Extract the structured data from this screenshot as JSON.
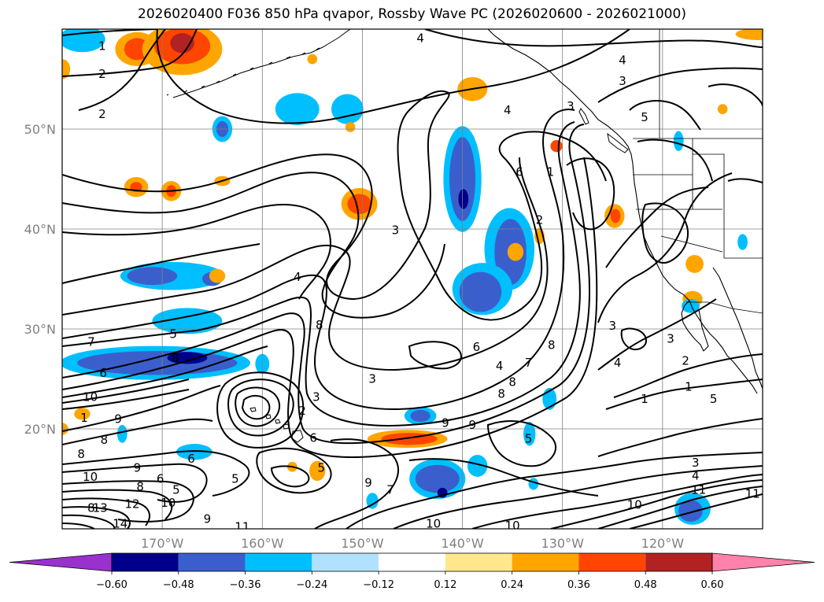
{
  "chart_data": {
    "type": "contour_map",
    "title": "2026020400 F036 850 hPa qvapor, Rossby Wave PC (2026020600 - 2026021000)",
    "map": {
      "lon_range": [
        -180,
        -110
      ],
      "lat_range": [
        10,
        60
      ],
      "lat_ticks": [
        {
          "value": 50,
          "label": "50°N"
        },
        {
          "value": 40,
          "label": "40°N"
        },
        {
          "value": 30,
          "label": "30°N"
        },
        {
          "value": 20,
          "label": "20°N"
        }
      ],
      "lon_ticks": [
        {
          "value": -170,
          "label": "170°W"
        },
        {
          "value": -160,
          "label": "160°W"
        },
        {
          "value": -150,
          "label": "150°W"
        },
        {
          "value": -140,
          "label": "140°W"
        },
        {
          "value": -130,
          "label": "130°W"
        },
        {
          "value": -120,
          "label": "120°W"
        }
      ],
      "grid": true
    },
    "contour_field": "850 hPa qvapor",
    "contour_labels": [
      {
        "value": "1",
        "lon": -176,
        "lat": 58.3
      },
      {
        "value": "2",
        "lon": -176,
        "lat": 55.5
      },
      {
        "value": "2",
        "lon": -176,
        "lat": 51.5
      },
      {
        "value": "4",
        "lon": -144.2,
        "lat": 59.1
      },
      {
        "value": "4",
        "lon": -124,
        "lat": 56.9
      },
      {
        "value": "3",
        "lon": -124,
        "lat": 54.8
      },
      {
        "value": "4",
        "lon": -135.5,
        "lat": 51.9
      },
      {
        "value": "3",
        "lon": -129.2,
        "lat": 52.3
      },
      {
        "value": "5",
        "lon": -121.8,
        "lat": 51.2
      },
      {
        "value": "6",
        "lon": -134.3,
        "lat": 45.7
      },
      {
        "value": "1",
        "lon": -131.2,
        "lat": 45.7
      },
      {
        "value": "3",
        "lon": -146.7,
        "lat": 39.9
      },
      {
        "value": "2",
        "lon": -132.3,
        "lat": 40.9
      },
      {
        "value": "4",
        "lon": -156.5,
        "lat": 35.2
      },
      {
        "value": "8",
        "lon": -154.3,
        "lat": 30.4
      },
      {
        "value": "5",
        "lon": -168.9,
        "lat": 29.5
      },
      {
        "value": "7",
        "lon": -177.1,
        "lat": 28.7
      },
      {
        "value": "8",
        "lon": -168.7,
        "lat": 27.1
      },
      {
        "value": "6",
        "lon": -175.9,
        "lat": 25.6
      },
      {
        "value": "10",
        "lon": -177.2,
        "lat": 23.2
      },
      {
        "value": "1",
        "lon": -177.8,
        "lat": 21.1
      },
      {
        "value": "9",
        "lon": -174.4,
        "lat": 21.0
      },
      {
        "value": "3",
        "lon": -154.6,
        "lat": 23.2
      },
      {
        "value": "2",
        "lon": -156.0,
        "lat": 21.8
      },
      {
        "value": "6",
        "lon": -154.9,
        "lat": 19.1
      },
      {
        "value": "6",
        "lon": -138.6,
        "lat": 28.2
      },
      {
        "value": "8",
        "lon": -131.1,
        "lat": 28.4
      },
      {
        "value": "3",
        "lon": -149.0,
        "lat": 25.0
      },
      {
        "value": "4",
        "lon": -136.3,
        "lat": 26.3
      },
      {
        "value": "7",
        "lon": -133.4,
        "lat": 26.6
      },
      {
        "value": "8",
        "lon": -135.0,
        "lat": 24.7
      },
      {
        "value": "8",
        "lon": -136.1,
        "lat": 23.5
      },
      {
        "value": "9",
        "lon": -141.7,
        "lat": 20.6
      },
      {
        "value": "9",
        "lon": -139.0,
        "lat": 20.4
      },
      {
        "value": "3",
        "lon": -125.0,
        "lat": 30.3
      },
      {
        "value": "3",
        "lon": -119.2,
        "lat": 29.0
      },
      {
        "value": "4",
        "lon": -124.5,
        "lat": 26.6
      },
      {
        "value": "2",
        "lon": -117.7,
        "lat": 26.8
      },
      {
        "value": "1",
        "lon": -121.8,
        "lat": 23.0
      },
      {
        "value": "1",
        "lon": -117.4,
        "lat": 24.2
      },
      {
        "value": "5",
        "lon": -114.9,
        "lat": 23.0
      },
      {
        "value": "5",
        "lon": -133.4,
        "lat": 19.0
      },
      {
        "value": "3",
        "lon": -116.7,
        "lat": 16.6
      },
      {
        "value": "4",
        "lon": -116.7,
        "lat": 15.3
      },
      {
        "value": "11",
        "lon": -116.4,
        "lat": 13.9
      },
      {
        "value": "11",
        "lon": -111.0,
        "lat": 13.5
      },
      {
        "value": "10",
        "lon": -122.8,
        "lat": 12.4
      },
      {
        "value": "10",
        "lon": -142.9,
        "lat": 10.5
      },
      {
        "value": "10",
        "lon": -135.0,
        "lat": 10.3
      },
      {
        "value": "11",
        "lon": -162.0,
        "lat": 10.2
      },
      {
        "value": "8",
        "lon": -178.1,
        "lat": 17.5
      },
      {
        "value": "8",
        "lon": -175.8,
        "lat": 18.9
      },
      {
        "value": "10",
        "lon": -177.2,
        "lat": 15.2
      },
      {
        "value": "9",
        "lon": -172.5,
        "lat": 16.1
      },
      {
        "value": "8",
        "lon": -172.2,
        "lat": 14.2
      },
      {
        "value": "6",
        "lon": -167.1,
        "lat": 17.0
      },
      {
        "value": "6",
        "lon": -170.2,
        "lat": 15.0
      },
      {
        "value": "5",
        "lon": -168.6,
        "lat": 13.9
      },
      {
        "value": "5",
        "lon": -162.7,
        "lat": 15.0
      },
      {
        "value": "12",
        "lon": -173.0,
        "lat": 12.5
      },
      {
        "value": "10",
        "lon": -169.4,
        "lat": 12.6
      },
      {
        "value": "13",
        "lon": -176.2,
        "lat": 12.1
      },
      {
        "value": "14",
        "lon": -174.2,
        "lat": 10.5
      },
      {
        "value": "8",
        "lon": -177.1,
        "lat": 12.1
      },
      {
        "value": "9",
        "lon": -165.5,
        "lat": 11.0
      },
      {
        "value": "9",
        "lon": -149.4,
        "lat": 14.6
      },
      {
        "value": "5",
        "lon": -154.1,
        "lat": 16.1
      },
      {
        "value": "7",
        "lon": -147.2,
        "lat": 13.9
      }
    ],
    "shading_field": "Rossby Wave PC (2026020600 - 2026021000)",
    "colorbar": {
      "levels": [
        -0.6,
        -0.48,
        -0.36,
        -0.24,
        -0.12,
        0.12,
        0.24,
        0.36,
        0.48,
        0.6
      ],
      "tick_labels": [
        "−0.60",
        "−0.48",
        "−0.36",
        "−0.24",
        "−0.12",
        "0.12",
        "0.24",
        "0.36",
        "0.48",
        "0.60"
      ],
      "colors": [
        "#9932CC",
        "#00008B",
        "#3A5FCD",
        "#00BFFF",
        "#B0E2FF",
        "#FFFFFF",
        "#FFE88C",
        "#FFA500",
        "#FF4500",
        "#B22222",
        "#FF82AB"
      ],
      "extend": "both"
    },
    "shaded_regions": [
      {
        "level": 0.24,
        "lon": -172.5,
        "lat": 58.0,
        "rx": 2.2,
        "ry": 1.7
      },
      {
        "level": 0.36,
        "lon": -172.5,
        "lat": 58.0,
        "rx": 1.3,
        "ry": 1.1
      },
      {
        "level": 0.24,
        "lon": -168.0,
        "lat": 58.0,
        "rx": 4.0,
        "ry": 2.6
      },
      {
        "level": 0.36,
        "lon": -168.0,
        "lat": 58.3,
        "rx": 2.8,
        "ry": 1.8
      },
      {
        "level": 0.48,
        "lon": -168.0,
        "lat": 58.6,
        "rx": 1.2,
        "ry": 1.0
      },
      {
        "level": 0.24,
        "lon": -180.0,
        "lat": 56.0,
        "rx": 0.8,
        "ry": 1.0
      },
      {
        "level": -0.24,
        "lon": -178.0,
        "lat": 59.0,
        "rx": 2.3,
        "ry": 1.3
      },
      {
        "level": -0.24,
        "lon": -151.5,
        "lat": 52.0,
        "rx": 1.6,
        "ry": 1.5
      },
      {
        "level": -0.24,
        "lon": -156.5,
        "lat": 52.0,
        "rx": 2.2,
        "ry": 1.6
      },
      {
        "level": -0.24,
        "lon": -164.0,
        "lat": 50.0,
        "rx": 1.0,
        "ry": 1.3
      },
      {
        "level": -0.36,
        "lon": -164.0,
        "lat": 50.0,
        "rx": 0.6,
        "ry": 0.8
      },
      {
        "level": 0.24,
        "lon": -139.0,
        "lat": 54.0,
        "rx": 1.5,
        "ry": 1.2
      },
      {
        "level": 0.24,
        "lon": -151.2,
        "lat": 50.2,
        "rx": 0.5,
        "ry": 0.5
      },
      {
        "level": -0.24,
        "lon": -140.0,
        "lat": 45.0,
        "rx": 1.9,
        "ry": 5.3
      },
      {
        "level": -0.36,
        "lon": -140.0,
        "lat": 45.0,
        "rx": 1.3,
        "ry": 4.2
      },
      {
        "level": -0.48,
        "lon": -139.9,
        "lat": 43.0,
        "rx": 0.5,
        "ry": 1.0
      },
      {
        "level": -0.24,
        "lon": -135.3,
        "lat": 38.0,
        "rx": 2.5,
        "ry": 4.1
      },
      {
        "level": -0.36,
        "lon": -135.2,
        "lat": 37.7,
        "rx": 1.6,
        "ry": 3.3
      },
      {
        "level": -0.24,
        "lon": -138.0,
        "lat": 34.0,
        "rx": 3.0,
        "ry": 2.6
      },
      {
        "level": -0.36,
        "lon": -138.2,
        "lat": 33.7,
        "rx": 2.1,
        "ry": 2.0
      },
      {
        "level": 0.24,
        "lon": -150.3,
        "lat": 42.5,
        "rx": 1.8,
        "ry": 1.6
      },
      {
        "level": 0.36,
        "lon": -150.3,
        "lat": 42.5,
        "rx": 1.2,
        "ry": 1.0
      },
      {
        "level": 0.24,
        "lon": -172.6,
        "lat": 44.2,
        "rx": 1.2,
        "ry": 1.0
      },
      {
        "level": 0.36,
        "lon": -172.6,
        "lat": 44.2,
        "rx": 0.6,
        "ry": 0.5
      },
      {
        "level": 0.24,
        "lon": -169.1,
        "lat": 43.8,
        "rx": 1.0,
        "ry": 1.0
      },
      {
        "level": 0.36,
        "lon": -169.1,
        "lat": 43.8,
        "rx": 0.5,
        "ry": 0.6
      },
      {
        "level": 0.24,
        "lon": -164.0,
        "lat": 44.8,
        "rx": 0.8,
        "ry": 0.5
      },
      {
        "level": -0.24,
        "lon": -169.0,
        "lat": 35.3,
        "rx": 5.2,
        "ry": 1.4
      },
      {
        "level": -0.36,
        "lon": -171.0,
        "lat": 35.3,
        "rx": 2.5,
        "ry": 0.9
      },
      {
        "level": -0.36,
        "lon": -165.0,
        "lat": 35.0,
        "rx": 1.0,
        "ry": 0.7
      },
      {
        "level": 0.24,
        "lon": -164.5,
        "lat": 35.3,
        "rx": 0.8,
        "ry": 0.7
      },
      {
        "level": -0.24,
        "lon": -167.5,
        "lat": 30.8,
        "rx": 3.5,
        "ry": 1.3
      },
      {
        "level": -0.24,
        "lon": -170.7,
        "lat": 26.6,
        "rx": 9.5,
        "ry": 1.7
      },
      {
        "level": -0.36,
        "lon": -170.5,
        "lat": 26.6,
        "rx": 8.0,
        "ry": 1.2
      },
      {
        "level": -0.48,
        "lon": -167.5,
        "lat": 27.1,
        "rx": 2.0,
        "ry": 0.6
      },
      {
        "level": -0.24,
        "lon": -160.0,
        "lat": 26.5,
        "rx": 0.7,
        "ry": 1.0
      },
      {
        "level": -0.24,
        "lon": -174.0,
        "lat": 19.5,
        "rx": 0.5,
        "ry": 0.9
      },
      {
        "level": 0.24,
        "lon": -180.0,
        "lat": 20.0,
        "rx": 0.6,
        "ry": 0.6
      },
      {
        "level": 0.24,
        "lon": -178.0,
        "lat": 21.5,
        "rx": 0.8,
        "ry": 0.6
      },
      {
        "level": -0.24,
        "lon": -144.2,
        "lat": 21.3,
        "rx": 1.6,
        "ry": 0.9
      },
      {
        "level": -0.36,
        "lon": -144.2,
        "lat": 21.3,
        "rx": 1.0,
        "ry": 0.6
      },
      {
        "level": 0.24,
        "lon": -145.5,
        "lat": 19.0,
        "rx": 4.0,
        "ry": 0.9
      },
      {
        "level": 0.36,
        "lon": -145.3,
        "lat": 19.0,
        "rx": 2.8,
        "ry": 0.6
      },
      {
        "level": -0.24,
        "lon": -149.0,
        "lat": 12.8,
        "rx": 0.6,
        "ry": 0.8
      },
      {
        "level": -0.24,
        "lon": -142.5,
        "lat": 15.0,
        "rx": 2.8,
        "ry": 2.0
      },
      {
        "level": -0.36,
        "lon": -142.5,
        "lat": 15.0,
        "rx": 2.2,
        "ry": 1.4
      },
      {
        "level": -0.48,
        "lon": -142.0,
        "lat": 13.6,
        "rx": 0.5,
        "ry": 0.5
      },
      {
        "level": -0.24,
        "lon": -138.5,
        "lat": 16.3,
        "rx": 1.0,
        "ry": 1.1
      },
      {
        "level": 0.24,
        "lon": -157.0,
        "lat": 16.2,
        "rx": 0.5,
        "ry": 0.5
      },
      {
        "level": 0.24,
        "lon": -154.5,
        "lat": 15.8,
        "rx": 0.8,
        "ry": 1.0
      },
      {
        "level": -0.24,
        "lon": -166.8,
        "lat": 17.7,
        "rx": 1.8,
        "ry": 0.8
      },
      {
        "level": -0.24,
        "lon": -133.3,
        "lat": 19.5,
        "rx": 0.6,
        "ry": 1.2
      },
      {
        "level": -0.24,
        "lon": -131.3,
        "lat": 23.0,
        "rx": 0.7,
        "ry": 1.1
      },
      {
        "level": -0.24,
        "lon": -132.9,
        "lat": 14.5,
        "rx": 0.5,
        "ry": 0.6
      },
      {
        "level": -0.24,
        "lon": -117.0,
        "lat": 12.0,
        "rx": 1.8,
        "ry": 1.6
      },
      {
        "level": -0.36,
        "lon": -117.2,
        "lat": 11.8,
        "rx": 1.2,
        "ry": 1.1
      },
      {
        "level": 0.24,
        "lon": -132.3,
        "lat": 39.3,
        "rx": 0.5,
        "ry": 0.8
      },
      {
        "level": 0.24,
        "lon": -124.8,
        "lat": 41.3,
        "rx": 1.0,
        "ry": 1.2
      },
      {
        "level": 0.36,
        "lon": -124.7,
        "lat": 41.3,
        "rx": 0.5,
        "ry": 0.7
      },
      {
        "level": 0.24,
        "lon": -116.8,
        "lat": 36.5,
        "rx": 0.9,
        "ry": 0.9
      },
      {
        "level": 0.24,
        "lon": -134.7,
        "lat": 37.7,
        "rx": 0.8,
        "ry": 0.9
      },
      {
        "level": -0.24,
        "lon": -118.4,
        "lat": 48.8,
        "rx": 0.5,
        "ry": 1.0
      },
      {
        "level": -0.24,
        "lon": -112.0,
        "lat": 38.7,
        "rx": 0.5,
        "ry": 0.8
      },
      {
        "level": 0.36,
        "lon": -130.6,
        "lat": 48.3,
        "rx": 0.6,
        "ry": 0.6
      },
      {
        "level": 0.24,
        "lon": -117.0,
        "lat": 33.0,
        "rx": 1.0,
        "ry": 0.8
      },
      {
        "level": -0.24,
        "lon": -117.2,
        "lat": 32.3,
        "rx": 0.9,
        "ry": 0.7
      },
      {
        "level": 0.24,
        "lon": -110.5,
        "lat": 59.5,
        "rx": 2.2,
        "ry": 0.6
      },
      {
        "level": 0.24,
        "lon": -114.0,
        "lat": 52.0,
        "rx": 0.5,
        "ry": 0.5
      },
      {
        "level": 0.24,
        "lon": -155.0,
        "lat": 57.0,
        "rx": 0.5,
        "ry": 0.5
      }
    ]
  }
}
